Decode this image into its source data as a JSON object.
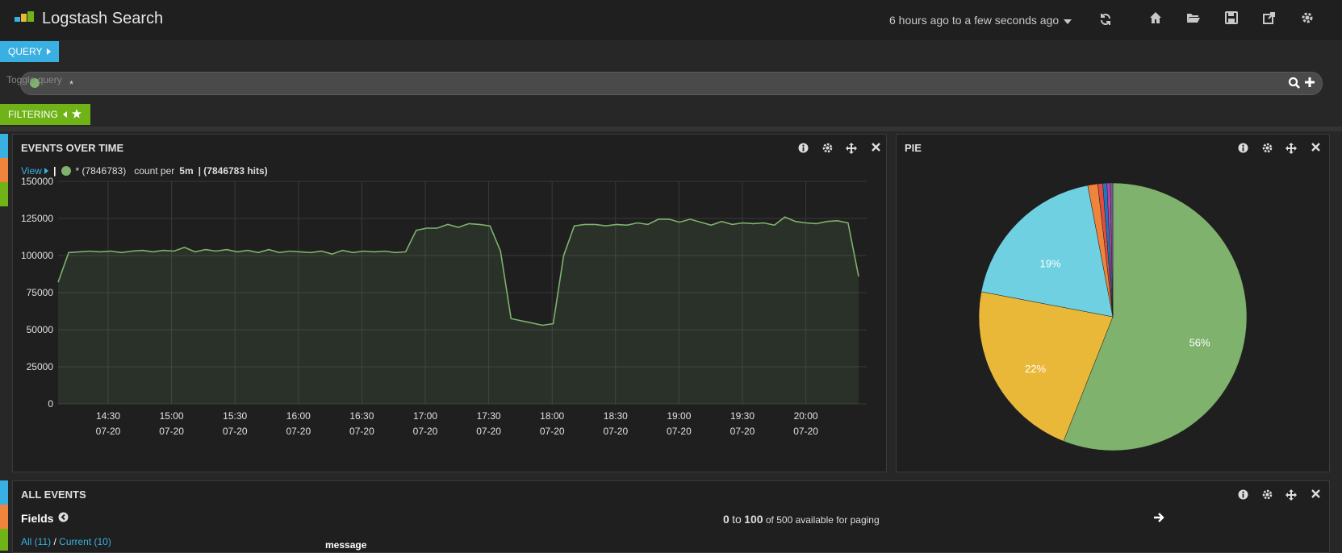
{
  "header": {
    "title": "Logstash Search",
    "time_range": "6 hours ago to a few seconds ago"
  },
  "query": {
    "pill_label": "QUERY",
    "toggle_label": "Toggle query",
    "input_value": "*"
  },
  "filtering": {
    "pill_label": "FILTERING"
  },
  "events_panel": {
    "title": "EVENTS OVER TIME",
    "view_label": "View",
    "legend_series": "* (7846783)",
    "count_per_prefix": "count per",
    "count_per_interval": "5m",
    "hits_summary": "| (7846783 hits)"
  },
  "pie_panel": {
    "title": "PIE",
    "slice_labels": [
      "56%",
      "22%",
      "19%"
    ]
  },
  "all_events": {
    "title": "ALL EVENTS",
    "fields_label": "Fields",
    "paging_from": "0",
    "paging_to_word": "to",
    "paging_to": "100",
    "paging_suffix": "of 500 available for paging",
    "all_link": "All (11)",
    "separator": "/",
    "current_link": "Current (10)",
    "column_header": "message"
  },
  "colors": {
    "accent_blue": "#3ab0e2",
    "filter_green": "#6fb316",
    "series_green": "#7eb26d",
    "pie_yellow": "#eab839",
    "pie_cyan": "#6ed0e0",
    "pie_orange": "#ef843c"
  },
  "chart_data": [
    {
      "type": "area",
      "title": "EVENTS OVER TIME",
      "series": [
        {
          "name": "* (7846783)",
          "values": [
            [
              0,
              82000
            ],
            [
              1,
              102000
            ],
            [
              2,
              102500
            ],
            [
              3,
              103000
            ],
            [
              4,
              102500
            ],
            [
              5,
              103000
            ],
            [
              6,
              102000
            ],
            [
              7,
              103000
            ],
            [
              8,
              103500
            ],
            [
              9,
              102500
            ],
            [
              10,
              103500
            ],
            [
              11,
              103000
            ],
            [
              12,
              105500
            ],
            [
              13,
              102500
            ],
            [
              14,
              104000
            ],
            [
              15,
              103000
            ],
            [
              16,
              104000
            ],
            [
              17,
              102500
            ],
            [
              18,
              103500
            ],
            [
              19,
              102000
            ],
            [
              20,
              104000
            ],
            [
              21,
              102000
            ],
            [
              22,
              103000
            ],
            [
              23,
              102500
            ],
            [
              24,
              102000
            ],
            [
              25,
              103000
            ],
            [
              26,
              101000
            ],
            [
              27,
              103500
            ],
            [
              28,
              102000
            ],
            [
              29,
              103000
            ],
            [
              30,
              102500
            ],
            [
              31,
              103000
            ],
            [
              32,
              102000
            ],
            [
              33,
              102500
            ],
            [
              34,
              117000
            ],
            [
              35,
              118500
            ],
            [
              36,
              118500
            ],
            [
              37,
              121000
            ],
            [
              38,
              119000
            ],
            [
              39,
              121500
            ],
            [
              40,
              121000
            ],
            [
              41,
              120000
            ],
            [
              42,
              103000
            ],
            [
              43,
              57500
            ],
            [
              44,
              56000
            ],
            [
              45,
              54500
            ],
            [
              46,
              53000
            ],
            [
              47,
              54000
            ],
            [
              48,
              100000
            ],
            [
              49,
              120000
            ],
            [
              50,
              121000
            ],
            [
              51,
              121000
            ],
            [
              52,
              120000
            ],
            [
              53,
              121000
            ],
            [
              54,
              120500
            ],
            [
              55,
              122000
            ],
            [
              56,
              121000
            ],
            [
              57,
              124500
            ],
            [
              58,
              124500
            ],
            [
              59,
              122500
            ],
            [
              60,
              124500
            ],
            [
              61,
              122500
            ],
            [
              62,
              120500
            ],
            [
              63,
              123000
            ],
            [
              64,
              121000
            ],
            [
              65,
              122000
            ],
            [
              66,
              121500
            ],
            [
              67,
              122000
            ],
            [
              68,
              120500
            ],
            [
              69,
              126000
            ],
            [
              70,
              123000
            ],
            [
              71,
              122000
            ],
            [
              72,
              121500
            ],
            [
              73,
              123000
            ],
            [
              74,
              123500
            ],
            [
              75,
              122000
            ],
            [
              76,
              86000
            ]
          ]
        }
      ],
      "x_tick_times": [
        "14:30",
        "15:00",
        "15:30",
        "16:00",
        "16:30",
        "17:00",
        "17:30",
        "18:00",
        "18:30",
        "19:00",
        "19:30",
        "20:00"
      ],
      "x_tick_dates": [
        "07-20",
        "07-20",
        "07-20",
        "07-20",
        "07-20",
        "07-20",
        "07-20",
        "07-20",
        "07-20",
        "07-20",
        "07-20",
        "07-20"
      ],
      "y_ticks": [
        "150000",
        "125000",
        "100000",
        "75000",
        "50000",
        "25000",
        "0"
      ],
      "ylim": [
        0,
        150000
      ],
      "grid": true
    },
    {
      "type": "pie",
      "title": "PIE",
      "slices": [
        {
          "label": "56%",
          "value": 56,
          "color": "#7eb26d"
        },
        {
          "label": "22%",
          "value": 22,
          "color": "#eab839"
        },
        {
          "label": "19%",
          "value": 19,
          "color": "#6ed0e0"
        },
        {
          "label": "",
          "value": 1.2,
          "color": "#ef843c"
        },
        {
          "label": "",
          "value": 0.6,
          "color": "#e24d42"
        },
        {
          "label": "",
          "value": 0.5,
          "color": "#1f78c1"
        },
        {
          "label": "",
          "value": 0.4,
          "color": "#ba43a9"
        },
        {
          "label": "",
          "value": 0.3,
          "color": "#705da0"
        }
      ]
    }
  ]
}
